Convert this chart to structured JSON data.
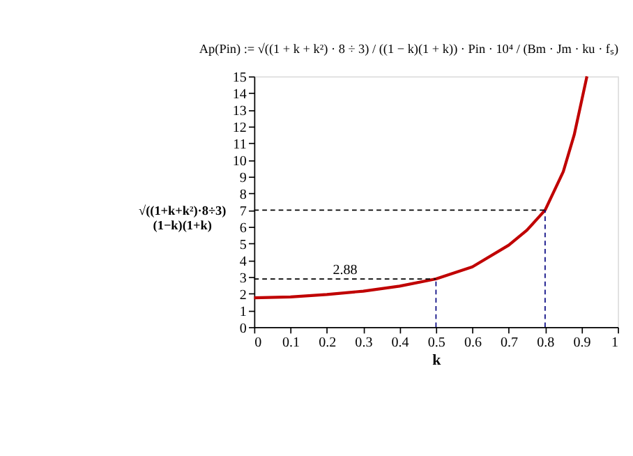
{
  "chart_data": {
    "type": "line",
    "title": "Ap(Pin) := √((1 + k + k²) · 8 ÷ 3) / ((1 − k)(1 + k)) · Pin · 10⁴ / (Bm · Jm · ku · fₛ)",
    "xlabel": "k",
    "ylabel": "√((1+k+k²)·8÷3)\n(1−k)(1+k)",
    "xlim": [
      0,
      1
    ],
    "xticks": [
      0,
      0.1,
      0.2,
      0.3,
      0.4,
      0.5,
      0.6,
      0.7,
      0.8,
      0.9,
      1
    ],
    "ylim": [
      0,
      15
    ],
    "yticks": [
      0,
      1,
      2,
      3,
      4,
      5,
      6,
      7,
      8,
      9,
      10,
      11,
      12,
      13,
      14,
      15
    ],
    "grid": false,
    "marker": "none",
    "series": [
      {
        "color": "#c00000",
        "line_style": "solid",
        "x": [
          0,
          0.1,
          0.2,
          0.3,
          0.4,
          0.5,
          0.6,
          0.7,
          0.75,
          0.8,
          0.85,
          0.88,
          0.9,
          0.915
        ],
        "values": [
          1.75,
          1.8,
          1.95,
          2.15,
          2.45,
          2.88,
          3.6,
          4.9,
          5.8,
          7.0,
          9.3,
          11.5,
          13.5,
          15
        ]
      },
      {
        "color": "#000000",
        "line_style": "dashed",
        "x": [
          0,
          0.5
        ],
        "values": [
          2.88,
          2.88
        ]
      },
      {
        "color": "#000080",
        "line_style": "dashed",
        "x": [
          0.5,
          0.5
        ],
        "values": [
          0,
          2.88
        ]
      },
      {
        "color": "#000000",
        "line_style": "dashed",
        "x": [
          0,
          0.8
        ],
        "values": [
          7,
          7
        ]
      },
      {
        "color": "#000080",
        "line_style": "dashed",
        "x": [
          0.8,
          0.8
        ],
        "values": [
          0,
          7
        ]
      }
    ],
    "annotations": [
      {
        "text": "2.88",
        "x": 0.25,
        "y": 2.88
      }
    ]
  }
}
